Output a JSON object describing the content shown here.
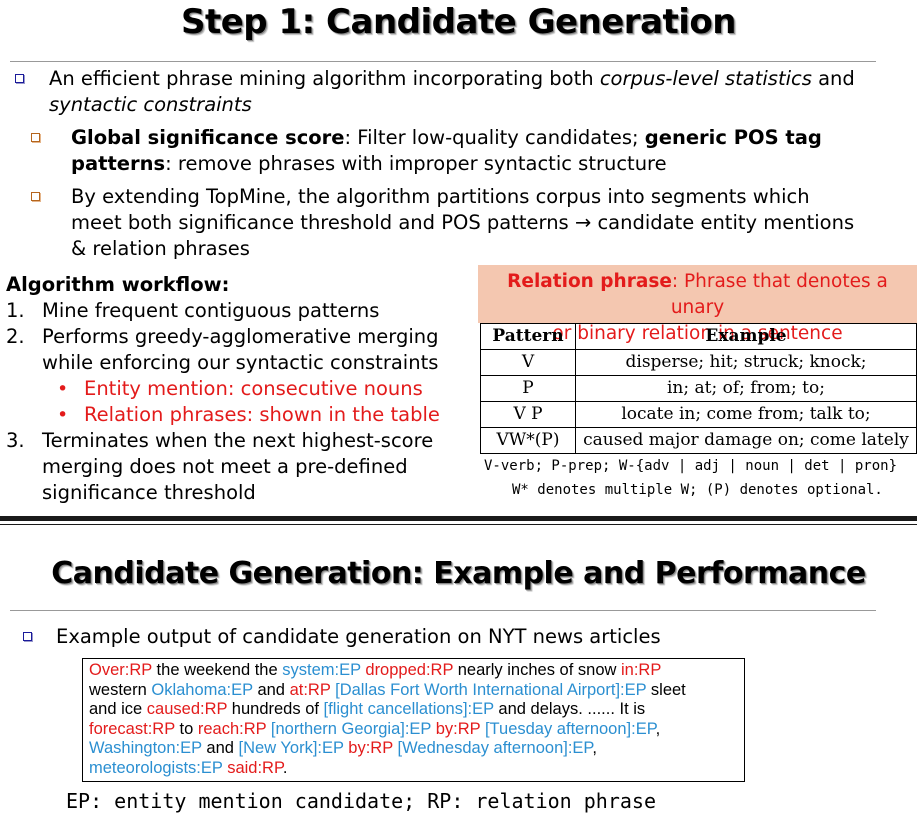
{
  "slide1": {
    "title": "Step 1:  Candidate Generation",
    "bullet1": {
      "line1_a": "An efficient phrase mining algorithm incorporating both ",
      "line1_em": "corpus-level statistics",
      "line1_b": " and",
      "line2_em": "syntactic constraints"
    },
    "sub1": {
      "b1": "Global significance score",
      "t1": ":  Filter low-quality candidates; ",
      "b2": "generic POS tag",
      "b3": "patterns",
      "t2": ": remove phrases with improper syntactic structure"
    },
    "sub2": {
      "line1": "By extending TopMine, the algorithm partitions corpus into segments which",
      "line2": "meet both significance threshold and POS patterns → candidate entity mentions",
      "line3": "& relation phrases"
    },
    "workflow": {
      "heading": "Algorithm workflow:",
      "step1_num": "1.",
      "step1": "Mine frequent contiguous patterns",
      "step2_num": "2.",
      "step2_l1": "Performs greedy-agglomerative merging",
      "step2_l2": "while enforcing our syntactic constraints",
      "bullet_a": "Entity mention: consecutive nouns",
      "bullet_b": "Relation phrases: shown in the table",
      "step3_num": "3.",
      "step3_l1": "Terminates when the next highest-score",
      "step3_l2": "merging does not meet a pre-defined",
      "step3_l3": "significance threshold"
    },
    "relation": {
      "head_bold": "Relation phrase",
      "head_rest": ": Phrase that denotes a unary",
      "head_l2": "or binary relation in a sentence",
      "columns": [
        "Pattern",
        "Example"
      ],
      "rows": [
        [
          "V",
          "disperse; hit; struck; knock;"
        ],
        [
          "P",
          "in; at; of; from; to;"
        ],
        [
          "V P",
          "locate in; come from; talk to;"
        ],
        [
          "VW*(P)",
          "caused major damage on; come lately"
        ]
      ],
      "note1": "V-verb; P-prep; W-{adv | adj | noun | det | pron}",
      "note2": "W* denotes multiple W; (P) denotes optional."
    }
  },
  "slide2": {
    "title": "Candidate Generation: Example and Performance",
    "bullet": "Example output of candidate generation on NYT news articles",
    "example_lines": [
      [
        [
          "rp",
          "Over:RP"
        ],
        [
          "t",
          " the weekend the "
        ],
        [
          "ep",
          "system:EP"
        ],
        [
          "t",
          " "
        ],
        [
          "rp",
          "dropped:RP"
        ],
        [
          "t",
          " nearly inches of snow "
        ],
        [
          "rp",
          "in:RP"
        ]
      ],
      [
        [
          "t",
          "western "
        ],
        [
          "ep",
          "Oklahoma:EP"
        ],
        [
          "t",
          " and "
        ],
        [
          "rp",
          "at:RP"
        ],
        [
          "t",
          " "
        ],
        [
          "ep",
          "[Dallas Fort Worth International Airport]:EP"
        ],
        [
          "t",
          " sleet"
        ]
      ],
      [
        [
          "t",
          "and ice "
        ],
        [
          "rp",
          "caused:RP"
        ],
        [
          "t",
          " hundreds of "
        ],
        [
          "ep",
          "[flight cancellations]:EP"
        ],
        [
          "t",
          " and delays. ...... It is"
        ]
      ],
      [
        [
          "rp",
          "forecast:RP"
        ],
        [
          "t",
          " to "
        ],
        [
          "rp",
          "reach:RP"
        ],
        [
          "t",
          " "
        ],
        [
          "ep",
          "[northern Georgia]:EP"
        ],
        [
          "t",
          " "
        ],
        [
          "rp",
          "by:RP"
        ],
        [
          "t",
          " "
        ],
        [
          "ep",
          "[Tuesday afternoon]:EP"
        ],
        [
          "t",
          ","
        ]
      ],
      [
        [
          "ep",
          "Washington:EP"
        ],
        [
          "t",
          " and "
        ],
        [
          "ep",
          "[New York]:EP"
        ],
        [
          "t",
          " "
        ],
        [
          "rp",
          "by:RP"
        ],
        [
          "t",
          " "
        ],
        [
          "ep",
          "[Wednesday afternoon]:EP"
        ],
        [
          "t",
          ","
        ]
      ],
      [
        [
          "ep",
          "meteorologists:EP"
        ],
        [
          "t",
          " "
        ],
        [
          "rp",
          "said:RP"
        ],
        [
          "t",
          "."
        ]
      ]
    ],
    "legend": "EP: entity mention candidate; RP: relation phrase"
  }
}
